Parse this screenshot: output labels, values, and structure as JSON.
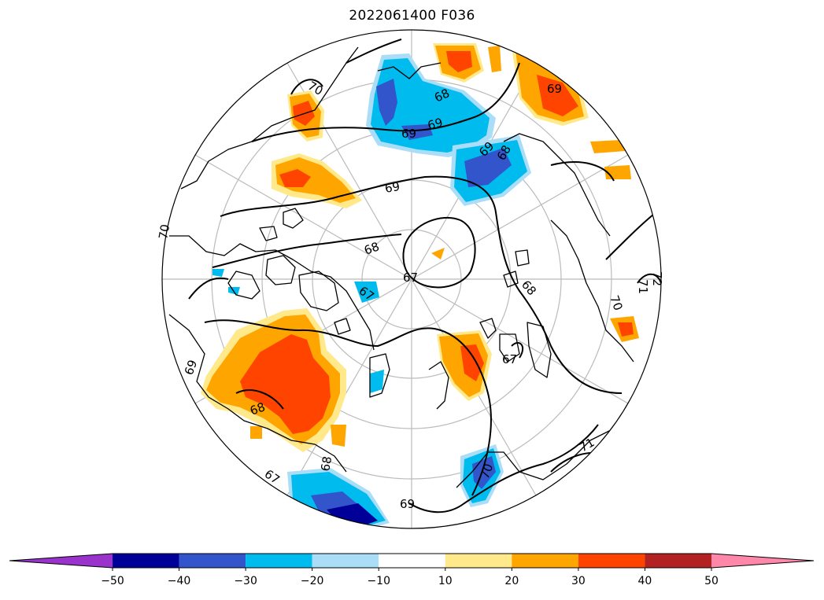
{
  "title": "2022061400 F036",
  "map": {
    "projection": "north polar stereographic",
    "contour_labels": [
      "70",
      "69",
      "68",
      "69",
      "69",
      "67",
      "68",
      "69",
      "70",
      "68",
      "67",
      "67",
      "68",
      "71",
      "70",
      "72",
      "68",
      "67",
      "68",
      "69",
      "71",
      "70",
      "69",
      "69"
    ],
    "fill_colors": {
      "neg50": "#9933cc",
      "neg40": "#000099",
      "neg30": "#3355cc",
      "neg20": "#00bbee",
      "neg10": "#aaddf8",
      "zero": "#ffffff",
      "pos10": "#ffe98a",
      "pos20": "#ffa500",
      "pos30": "#ff4400",
      "pos40": "#b22222",
      "pos50": "#ff88aa"
    }
  },
  "colorbar": {
    "tick_labels": [
      "−50",
      "−40",
      "−30",
      "−20",
      "−10",
      "10",
      "20",
      "30",
      "40",
      "50"
    ],
    "segment_colors": [
      "#9933cc",
      "#000099",
      "#3355cc",
      "#00bbee",
      "#aaddf8",
      "#ffffff",
      "#ffe98a",
      "#ffa500",
      "#ff4400",
      "#b22222",
      "#ff88aa"
    ]
  }
}
